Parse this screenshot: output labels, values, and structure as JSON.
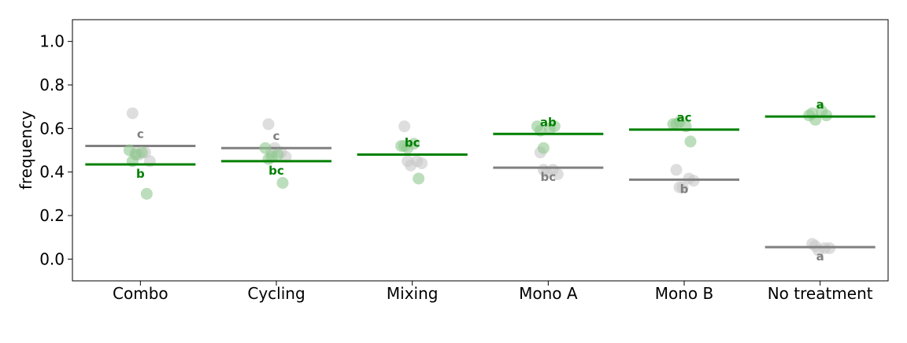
{
  "chart_data": {
    "type": "scatter",
    "ylabel": "frequency",
    "ylim": [
      -0.1,
      1.1
    ],
    "yticks": [
      "0.0",
      "0.2",
      "0.4",
      "0.6",
      "0.8",
      "1.0"
    ],
    "categories": [
      "Combo",
      "Cycling",
      "Mixing",
      "Mono A",
      "Mono B",
      "No treatment"
    ],
    "colors": {
      "grey": "#808080",
      "green": "#008000",
      "grey_point": "#c8c8c8",
      "green_point": "#90c890"
    },
    "series": [
      {
        "color": "grey",
        "means": [
          0.52,
          0.51,
          0.48,
          0.42,
          0.365,
          0.055
        ],
        "letters": [
          "c",
          "c",
          "bc",
          "bc",
          "b",
          "a"
        ],
        "points": [
          [
            0.67,
            0.49,
            0.48,
            0.45,
            0.49
          ],
          [
            0.62,
            0.49,
            0.51,
            0.47,
            0.49
          ],
          [
            0.61,
            0.45,
            0.43,
            0.44,
            0.45
          ],
          [
            0.49,
            0.41,
            0.4,
            0.39,
            0.41
          ],
          [
            0.41,
            0.37,
            0.33,
            0.36,
            0.33
          ],
          [
            0.07,
            0.05,
            0.04,
            0.05,
            0.06
          ]
        ]
      },
      {
        "color": "green",
        "means": [
          0.435,
          0.45,
          0.48,
          0.575,
          0.595,
          0.655
        ],
        "letters": [
          "b",
          "bc",
          "bc",
          "ab",
          "ac",
          "a"
        ],
        "points": [
          [
            0.5,
            0.49,
            0.48,
            0.3,
            0.45
          ],
          [
            0.51,
            0.48,
            0.47,
            0.35,
            0.46
          ],
          [
            0.52,
            0.53,
            0.51,
            0.37,
            0.52
          ],
          [
            0.61,
            0.6,
            0.51,
            0.61,
            0.59
          ],
          [
            0.62,
            0.61,
            0.63,
            0.54,
            0.62
          ],
          [
            0.66,
            0.68,
            0.64,
            0.66,
            0.67
          ]
        ]
      }
    ]
  }
}
